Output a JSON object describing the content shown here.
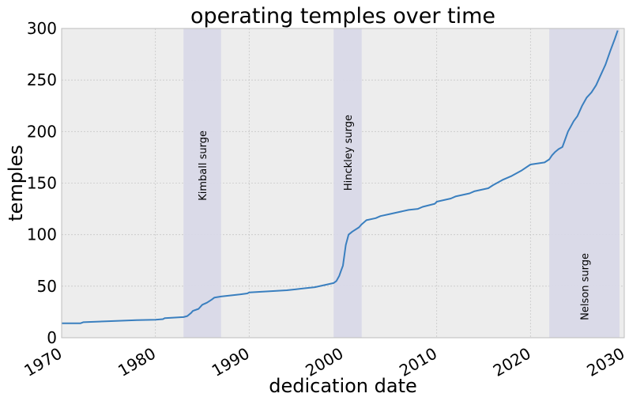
{
  "chart_data": {
    "type": "line",
    "title": "operating temples over time",
    "xlabel": "dedication date",
    "ylabel": "temples",
    "xlim": [
      1970,
      2030
    ],
    "ylim": [
      0,
      300
    ],
    "grid": true,
    "x_ticks": [
      1970,
      1980,
      1990,
      2000,
      2010,
      2020,
      2030
    ],
    "x_tick_labels": [
      "1970",
      "1980",
      "1990",
      "2000",
      "2010",
      "2020",
      "2030"
    ],
    "y_ticks": [
      0,
      50,
      100,
      150,
      200,
      250,
      300
    ],
    "y_tick_labels": [
      "0",
      "50",
      "100",
      "150",
      "200",
      "250",
      "300"
    ],
    "colors": {
      "line": "#3a7fbf",
      "band": "#d9d9e8",
      "plot_bg": "#ededed",
      "grid": "#c8c8c8"
    },
    "shaded_regions": [
      {
        "label": "Kimball surge",
        "start": 1983.0,
        "end": 1987.0
      },
      {
        "label": "Hinckley surge",
        "start": 1999.0,
        "end": 2002.0
      },
      {
        "label": "Nelson surge",
        "start": 2022.0,
        "end": 2029.5
      }
    ],
    "series": [
      {
        "x": [
          1970,
          1972.0,
          1972.3,
          1975,
          1978,
          1980,
          1980.8,
          1981,
          1983,
          1983.4,
          1983.8,
          1984,
          1984.6,
          1985,
          1985.5,
          1986,
          1986.3,
          1987,
          1989,
          1989.8,
          1990,
          1992,
          1994,
          1995,
          1996,
          1997,
          1998,
          1999,
          1999.3,
          1999.6,
          1999.8,
          2000,
          2000.3,
          2000.6,
          2001,
          2001.7,
          2002,
          2002.5,
          2003.5,
          2004,
          2005,
          2006,
          2007,
          2008,
          2008.5,
          2009.8,
          2010,
          2011.5,
          2012,
          2013.5,
          2014,
          2015.5,
          2016,
          2017,
          2018,
          2019,
          2020,
          2021.5,
          2022,
          2022.3,
          2022.6,
          2023,
          2023.4,
          2023.6,
          2024,
          2024.3,
          2024.6,
          2025,
          2025.5,
          2026,
          2026.5,
          2027,
          2027.5,
          2028,
          2028.5,
          2029,
          2029.3
        ],
        "y": [
          14,
          14,
          15,
          16,
          17,
          17.5,
          18,
          19,
          20,
          21,
          24,
          26,
          28,
          32,
          34,
          37,
          39,
          40,
          42,
          43,
          44,
          45,
          46,
          47,
          48,
          49,
          51,
          53,
          55,
          60,
          65,
          70,
          90,
          100,
          103,
          107,
          110,
          114,
          116,
          118,
          120,
          122,
          124,
          125,
          127,
          130,
          132,
          135,
          137,
          140,
          142,
          145,
          148,
          153,
          157,
          162,
          168,
          170,
          173,
          177,
          180,
          183,
          185,
          190,
          200,
          205,
          210,
          215,
          225,
          233,
          238,
          245,
          255,
          265,
          278,
          290,
          298
        ]
      }
    ]
  }
}
